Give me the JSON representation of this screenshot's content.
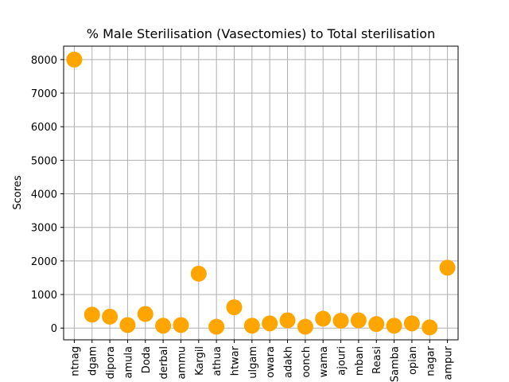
{
  "chart_data": {
    "type": "scatter",
    "title": "% Male Sterilisation (Vasectomies) to Total sterilisation",
    "xlabel": "",
    "ylabel": "Scores",
    "ylim": [
      -350,
      8400
    ],
    "yticks": [
      0,
      1000,
      2000,
      3000,
      4000,
      5000,
      6000,
      7000,
      8000
    ],
    "ytick_labels": [
      "0",
      "1000",
      "2000",
      "3000",
      "4000",
      "5000",
      "6000",
      "7000",
      "8000"
    ],
    "grid": true,
    "marker_color": "#ffa500",
    "categories": [
      "ntnag",
      "dgam",
      "dipora",
      "amula",
      "Doda",
      "derbal",
      "ammu",
      "Kargil",
      "athua",
      "htwar",
      "ulgam",
      "owara",
      "adakh",
      "oonch",
      "wama",
      "ajouri",
      "mban",
      "Reasi",
      "Samba",
      "opian",
      "nagar",
      "ampur"
    ],
    "values": [
      8000,
      400,
      340,
      90,
      420,
      70,
      90,
      1620,
      40,
      620,
      70,
      140,
      230,
      40,
      280,
      220,
      230,
      120,
      70,
      140,
      20,
      1800
    ]
  }
}
